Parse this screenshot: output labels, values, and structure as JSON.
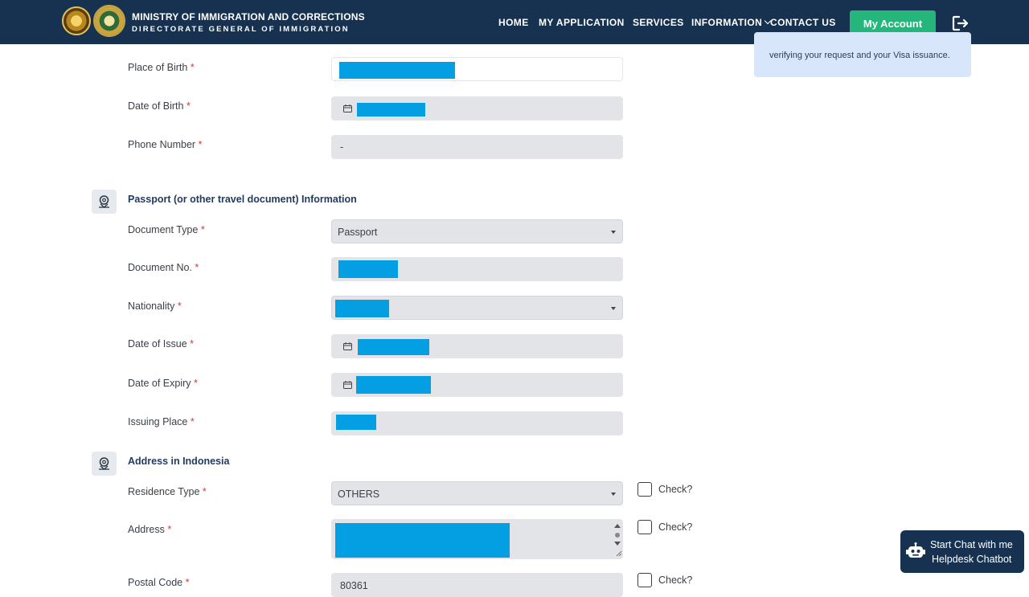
{
  "header": {
    "title_line1": "MINISTRY OF IMMIGRATION AND CORRECTIONS",
    "title_line2": "DIRECTORATE GENERAL OF IMMIGRATION",
    "nav": {
      "home": "HOME",
      "my_application": "MY APPLICATION",
      "services": "SERVICES",
      "information": "INFORMATION",
      "contact_us": "CONTACT US"
    },
    "account_button": "My Account",
    "accent_color": "#26b57b",
    "bar_color": "#173250"
  },
  "side_note": {
    "text": "verifying your request and your Visa issuance."
  },
  "personal": {
    "place_of_birth_label": "Place of Birth",
    "date_of_birth_label": "Date of Birth",
    "phone_label": "Phone Number",
    "phone_value": "-"
  },
  "passport": {
    "title": "Passport (or other travel document) Information",
    "document_type_label": "Document Type",
    "document_type_value": "Passport",
    "document_no_label": "Document No.",
    "nationality_label": "Nationality",
    "date_of_issue_label": "Date of Issue",
    "date_of_expiry_label": "Date of Expiry",
    "issuing_place_label": "Issuing Place"
  },
  "address": {
    "title": "Address in Indonesia",
    "residence_type_label": "Residence Type",
    "residence_type_value": "OTHERS",
    "address_label": "Address",
    "postal_code_label": "Postal Code",
    "postal_code_value": "80361",
    "check_label": "Check?"
  },
  "required_marker": "*",
  "chatbot": {
    "line1": "Start Chat with me",
    "line2": "Helpdesk Chatbot"
  },
  "icons": {
    "logout": "logout-icon",
    "calendar": "calendar-icon",
    "section": "map-pin-icon",
    "chatbot": "robot-icon"
  }
}
